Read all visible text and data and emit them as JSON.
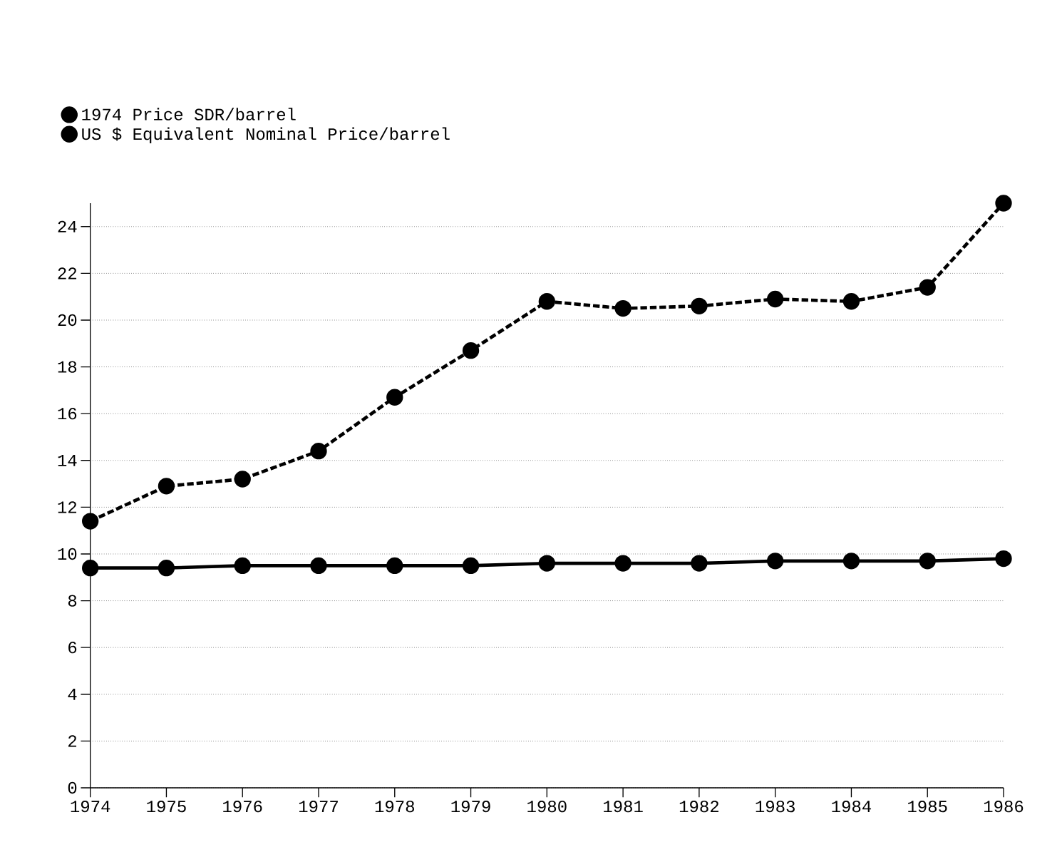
{
  "chart_data": {
    "type": "line",
    "x": [
      1974,
      1975,
      1976,
      1977,
      1978,
      1979,
      1980,
      1981,
      1982,
      1983,
      1984,
      1985,
      1986
    ],
    "series": [
      {
        "name": "1974 Price SDR/barrel",
        "color": "#000000",
        "line_style": "solid",
        "values": [
          9.4,
          9.4,
          9.5,
          9.5,
          9.5,
          9.5,
          9.6,
          9.6,
          9.6,
          9.7,
          9.7,
          9.7,
          9.8
        ]
      },
      {
        "name": "US $ Equivalent Nominal Price/barrel",
        "color": "#000000",
        "line_style": "dashed",
        "values": [
          11.4,
          12.9,
          13.2,
          14.4,
          16.7,
          18.7,
          20.8,
          20.5,
          20.6,
          20.9,
          20.8,
          21.4,
          25.0
        ]
      }
    ],
    "xlim": [
      1974,
      1986
    ],
    "xticks": [
      1974,
      1975,
      1976,
      1977,
      1978,
      1979,
      1980,
      1981,
      1982,
      1983,
      1984,
      1985,
      1986
    ],
    "ylim": [
      0,
      25
    ],
    "yticks": [
      0,
      2,
      4,
      6,
      8,
      10,
      12,
      14,
      16,
      18,
      20,
      22,
      24
    ],
    "grid": "y",
    "legend": "top left",
    "marker": "circle"
  }
}
